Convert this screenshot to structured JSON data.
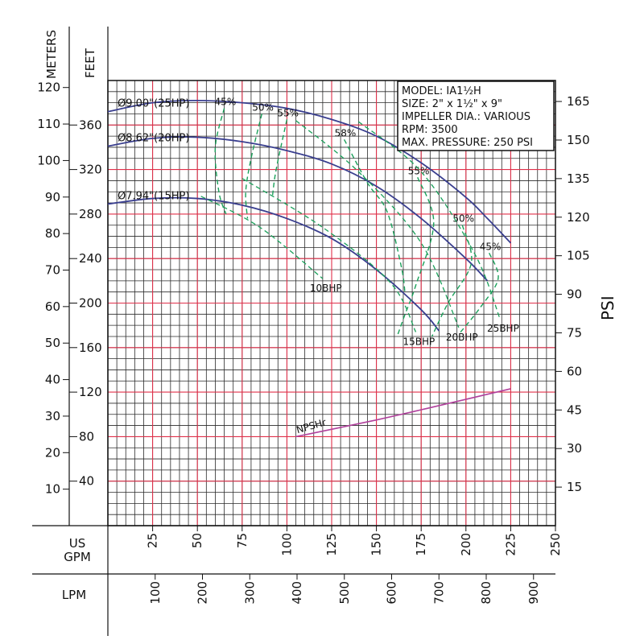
{
  "chart_data": {
    "type": "line",
    "title": "",
    "info_box": [
      "MODEL: IA1½H",
      "SIZE: 2\" x 1½\" x 9\"",
      "IMPELLER DIA.: VARIOUS",
      "RPM: 3500",
      "MAX. PRESSURE: 250 PSI"
    ],
    "axes": {
      "meters": {
        "label": "METERS",
        "ticks": [
          10,
          20,
          30,
          40,
          50,
          60,
          70,
          80,
          90,
          100,
          110,
          120
        ]
      },
      "feet": {
        "label": "FEET",
        "ticks": [
          40,
          80,
          120,
          160,
          200,
          240,
          280,
          320,
          360
        ]
      },
      "psi": {
        "label": "PSI",
        "ticks": [
          15,
          30,
          45,
          60,
          75,
          90,
          105,
          120,
          135,
          150,
          165
        ]
      },
      "gpm": {
        "label_line1": "US",
        "label_line2": "GPM",
        "ticks": [
          25,
          50,
          75,
          100,
          125,
          150,
          175,
          200,
          225,
          250
        ],
        "range": [
          0,
          250
        ]
      },
      "lpm": {
        "label": "LPM",
        "ticks": [
          100,
          200,
          300,
          400,
          500,
          600,
          700,
          800,
          900
        ]
      },
      "head_ft_range": [
        0,
        400
      ]
    },
    "impeller_curves": [
      {
        "label": "Ø9.00\"(25HP)",
        "points": [
          [
            0,
            372
          ],
          [
            25,
            380
          ],
          [
            50,
            382
          ],
          [
            75,
            380
          ],
          [
            100,
            375
          ],
          [
            125,
            365
          ],
          [
            150,
            350
          ],
          [
            175,
            326
          ],
          [
            200,
            295
          ],
          [
            212,
            276
          ],
          [
            225,
            254
          ]
        ]
      },
      {
        "label": "Ø8.62\"(20HP)",
        "points": [
          [
            0,
            341
          ],
          [
            25,
            348
          ],
          [
            50,
            349
          ],
          [
            75,
            345
          ],
          [
            100,
            337
          ],
          [
            125,
            325
          ],
          [
            150,
            305
          ],
          [
            175,
            276
          ],
          [
            200,
            240
          ],
          [
            212,
            220
          ]
        ]
      },
      {
        "label": "Ø7.94\"(15HP)",
        "points": [
          [
            0,
            289
          ],
          [
            25,
            294
          ],
          [
            50,
            294
          ],
          [
            75,
            288
          ],
          [
            100,
            276
          ],
          [
            125,
            258
          ],
          [
            150,
            230
          ],
          [
            175,
            194
          ],
          [
            185,
            175
          ]
        ]
      }
    ],
    "efficiency_lines": [
      {
        "label": "45%",
        "points": [
          [
            65,
            375
          ],
          [
            60,
            340
          ],
          [
            62,
            300
          ],
          [
            66,
            280
          ]
        ]
      },
      {
        "label": "50%",
        "points": [
          [
            86,
            370
          ],
          [
            80,
            330
          ],
          [
            77,
            300
          ],
          [
            78,
            276
          ]
        ]
      },
      {
        "label": "55%",
        "points": [
          [
            100,
            365
          ],
          [
            94,
            320
          ],
          [
            92,
            297
          ]
        ]
      },
      {
        "label": "58%",
        "points": [
          [
            132,
            347
          ],
          [
            145,
            308
          ],
          [
            156,
            282
          ],
          [
            164,
            232
          ],
          [
            166,
            208
          ]
        ]
      },
      {
        "label": "55%",
        "points": [
          [
            173,
            313
          ],
          [
            182,
            272
          ],
          [
            172,
            216
          ],
          [
            166,
            190
          ],
          [
            162,
            172
          ]
        ]
      },
      {
        "label": "50%",
        "points": [
          [
            198,
            270
          ],
          [
            203,
            236
          ],
          [
            190,
            200
          ],
          [
            181,
            170
          ]
        ]
      },
      {
        "label": "45%",
        "points": [
          [
            213,
            245
          ],
          [
            218,
            222
          ],
          [
            208,
            196
          ],
          [
            196,
            172
          ]
        ]
      }
    ],
    "bhp_lines": [
      {
        "label": "10BHP",
        "points": [
          [
            52,
            296
          ],
          [
            85,
            268
          ],
          [
            120,
            222
          ]
        ]
      },
      {
        "label": "15BHP",
        "points": [
          [
            75,
            312
          ],
          [
            120,
            268
          ],
          [
            158,
            218
          ],
          [
            172,
            174
          ]
        ]
      },
      {
        "label": "20BHP",
        "points": [
          [
            105,
            364
          ],
          [
            140,
            318
          ],
          [
            175,
            254
          ],
          [
            196,
            178
          ]
        ]
      },
      {
        "label": "25BHP",
        "points": [
          [
            140,
            363
          ],
          [
            175,
            318
          ],
          [
            205,
            244
          ],
          [
            219,
            186
          ]
        ]
      }
    ],
    "npshr": {
      "label": "NPSHr",
      "points": [
        [
          105,
          80
        ],
        [
          150,
          95
        ],
        [
          180,
          106
        ],
        [
          225,
          123
        ]
      ]
    },
    "grid": true
  }
}
